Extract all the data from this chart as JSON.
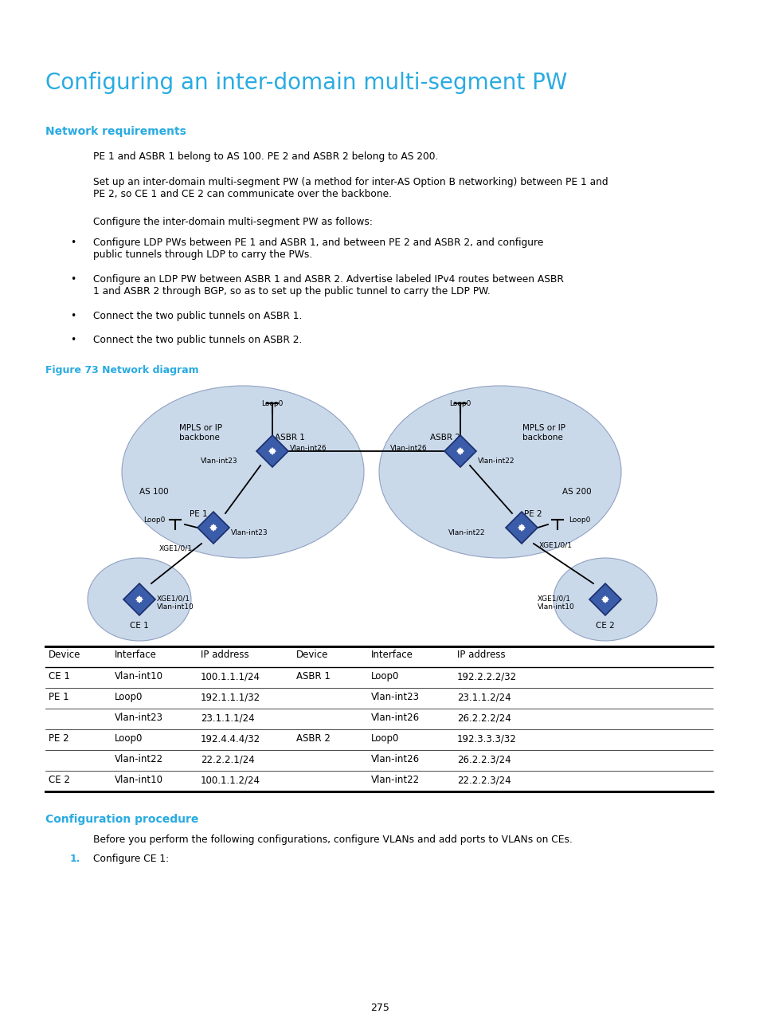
{
  "title": "Configuring an inter-domain multi-segment PW",
  "title_color": "#29ABE2",
  "title_fontsize": 20,
  "section1_heading": "Network requirements",
  "section1_color": "#29ABE2",
  "section1_fontsize": 10,
  "body_color": "#000000",
  "body_fontsize": 8.8,
  "para1": "PE 1 and ASBR 1 belong to AS 100. PE 2 and ASBR 2 belong to AS 200.",
  "para2": "Set up an inter-domain multi-segment PW (a method for inter-AS Option B networking) between PE 1 and\nPE 2, so CE 1 and CE 2 can communicate over the backbone.",
  "para3": "Configure the inter-domain multi-segment PW as follows:",
  "bullets": [
    "Configure LDP PWs between PE 1 and ASBR 1, and between PE 2 and ASBR 2, and configure\npublic tunnels through LDP to carry the PWs.",
    "Configure an LDP PW between ASBR 1 and ASBR 2. Advertise labeled IPv4 routes between ASBR\n1 and ASBR 2 through BGP, so as to set up the public tunnel to carry the LDP PW.",
    "Connect the two public tunnels on ASBR 1.",
    "Connect the two public tunnels on ASBR 2."
  ],
  "fig_caption": "Figure 73 Network diagram",
  "fig_caption_color": "#29ABE2",
  "fig_caption_fontsize": 9,
  "table_headers": [
    "Device",
    "Interface",
    "IP address",
    "Device",
    "Interface",
    "IP address"
  ],
  "table_rows": [
    [
      "CE 1",
      "Vlan-int10",
      "100.1.1.1/24",
      "ASBR 1",
      "Loop0",
      "192.2.2.2/32"
    ],
    [
      "PE 1",
      "Loop0",
      "192.1.1.1/32",
      "",
      "Vlan-int23",
      "23.1.1.2/24"
    ],
    [
      "",
      "Vlan-int23",
      "23.1.1.1/24",
      "",
      "Vlan-int26",
      "26.2.2.2/24"
    ],
    [
      "PE 2",
      "Loop0",
      "192.4.4.4/32",
      "ASBR 2",
      "Loop0",
      "192.3.3.3/32"
    ],
    [
      "",
      "Vlan-int22",
      "22.2.2.1/24",
      "",
      "Vlan-int26",
      "26.2.2.3/24"
    ],
    [
      "CE 2",
      "Vlan-int10",
      "100.1.1.2/24",
      "",
      "Vlan-int22",
      "22.2.2.3/24"
    ]
  ],
  "section2_heading": "Configuration procedure",
  "section2_color": "#29ABE2",
  "section2_fontsize": 10,
  "proc_intro": "Before you perform the following configurations, configure VLANs and add ports to VLANs on CEs.",
  "proc_step1": "Configure CE 1:",
  "proc_step1_color": "#29ABE2",
  "page_number": "275",
  "bg_color": "#FFFFFF",
  "node_color": "#3B5CA8",
  "cloud_color": "#C5D5E8",
  "line_color": "#000000"
}
